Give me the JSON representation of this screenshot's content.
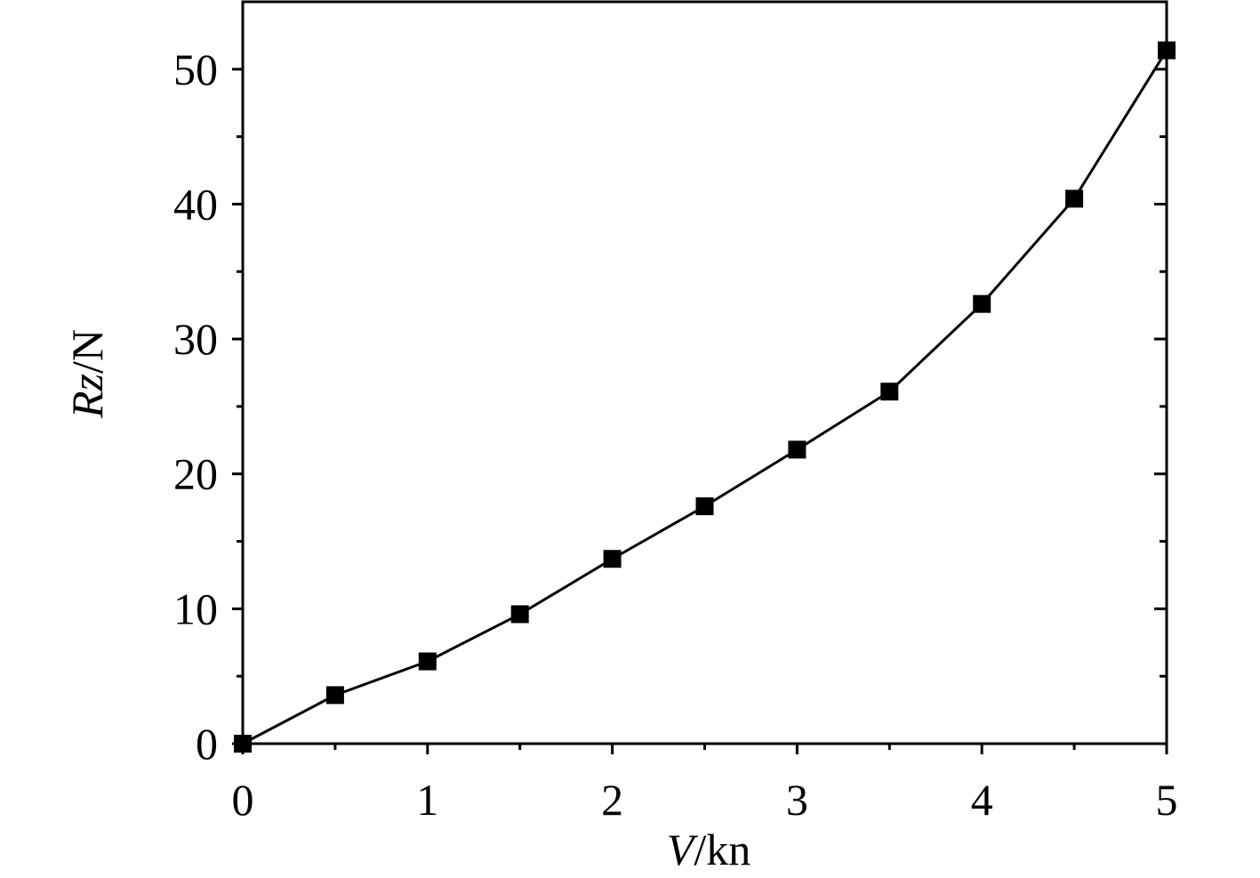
{
  "chart_data": {
    "type": "line",
    "xlabel": {
      "symbol": "V",
      "unit": "/kn"
    },
    "ylabel": {
      "symbol": "Rz",
      "unit": "/N"
    },
    "x": [
      0,
      0.5,
      1,
      1.5,
      2,
      2.5,
      3,
      3.5,
      4,
      4.5,
      5
    ],
    "series": [
      {
        "color": "#000000",
        "marker": "square",
        "values": [
          0,
          3.6,
          6.1,
          9.6,
          13.7,
          17.6,
          21.8,
          26.1,
          32.6,
          40.4,
          51.4
        ]
      }
    ],
    "xlim": [
      0,
      5
    ],
    "xticks": [
      0,
      1,
      2,
      3,
      4,
      5
    ],
    "xminorticks": [
      0.5,
      1.5,
      2.5,
      3.5,
      4.5
    ],
    "ylim": [
      0,
      55
    ],
    "yticks": [
      0,
      10,
      20,
      30,
      40,
      50
    ],
    "yminorticks": [
      5,
      15,
      25,
      35,
      45
    ],
    "grid": false
  }
}
